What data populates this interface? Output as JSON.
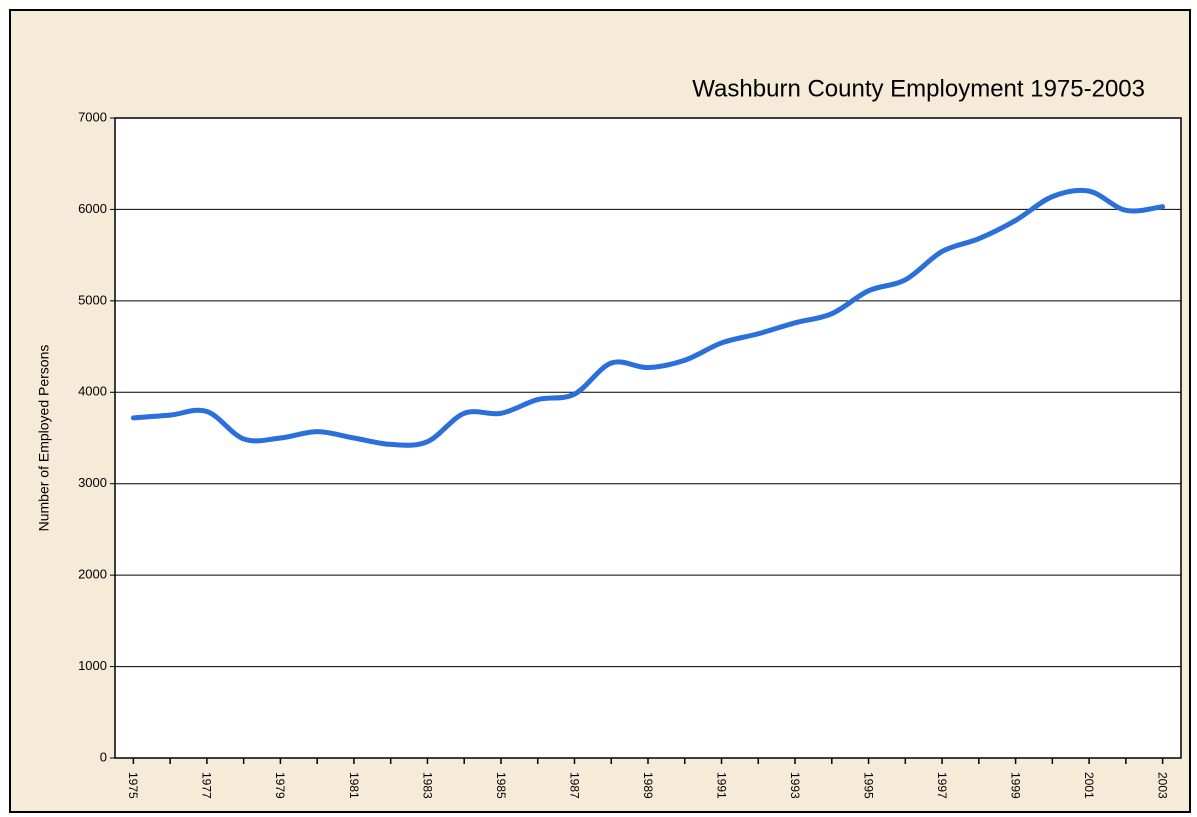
{
  "chart_data": {
    "type": "line",
    "title": "Washburn County Employment 1975-2003",
    "ylabel": "Number of Employed Persons",
    "x": [
      1975,
      1976,
      1977,
      1978,
      1979,
      1980,
      1981,
      1982,
      1983,
      1984,
      1985,
      1986,
      1987,
      1988,
      1989,
      1990,
      1991,
      1992,
      1993,
      1994,
      1995,
      1996,
      1997,
      1998,
      1999,
      2000,
      2001,
      2002,
      2003
    ],
    "series": [
      {
        "name": "Employment",
        "color": "#2a6fdb",
        "values": [
          3720,
          3750,
          3790,
          3490,
          3500,
          3570,
          3500,
          3430,
          3460,
          3770,
          3770,
          3920,
          3980,
          4320,
          4270,
          4350,
          4540,
          4640,
          4760,
          4860,
          5110,
          5230,
          5540,
          5680,
          5880,
          6140,
          6200,
          5990,
          6030
        ]
      }
    ],
    "xlim": [
      1974.5,
      2003.5
    ],
    "xticks": [
      1975,
      1977,
      1979,
      1981,
      1983,
      1985,
      1987,
      1989,
      1991,
      1993,
      1995,
      1997,
      1999,
      2001,
      2003
    ],
    "xminorticks": [
      1976,
      1978,
      1980,
      1982,
      1984,
      1986,
      1988,
      1990,
      1992,
      1994,
      1996,
      1998,
      2000,
      2002
    ],
    "ylim": [
      0,
      7000
    ],
    "yticks": [
      0,
      1000,
      2000,
      3000,
      4000,
      5000,
      6000,
      7000
    ],
    "grid": true
  }
}
